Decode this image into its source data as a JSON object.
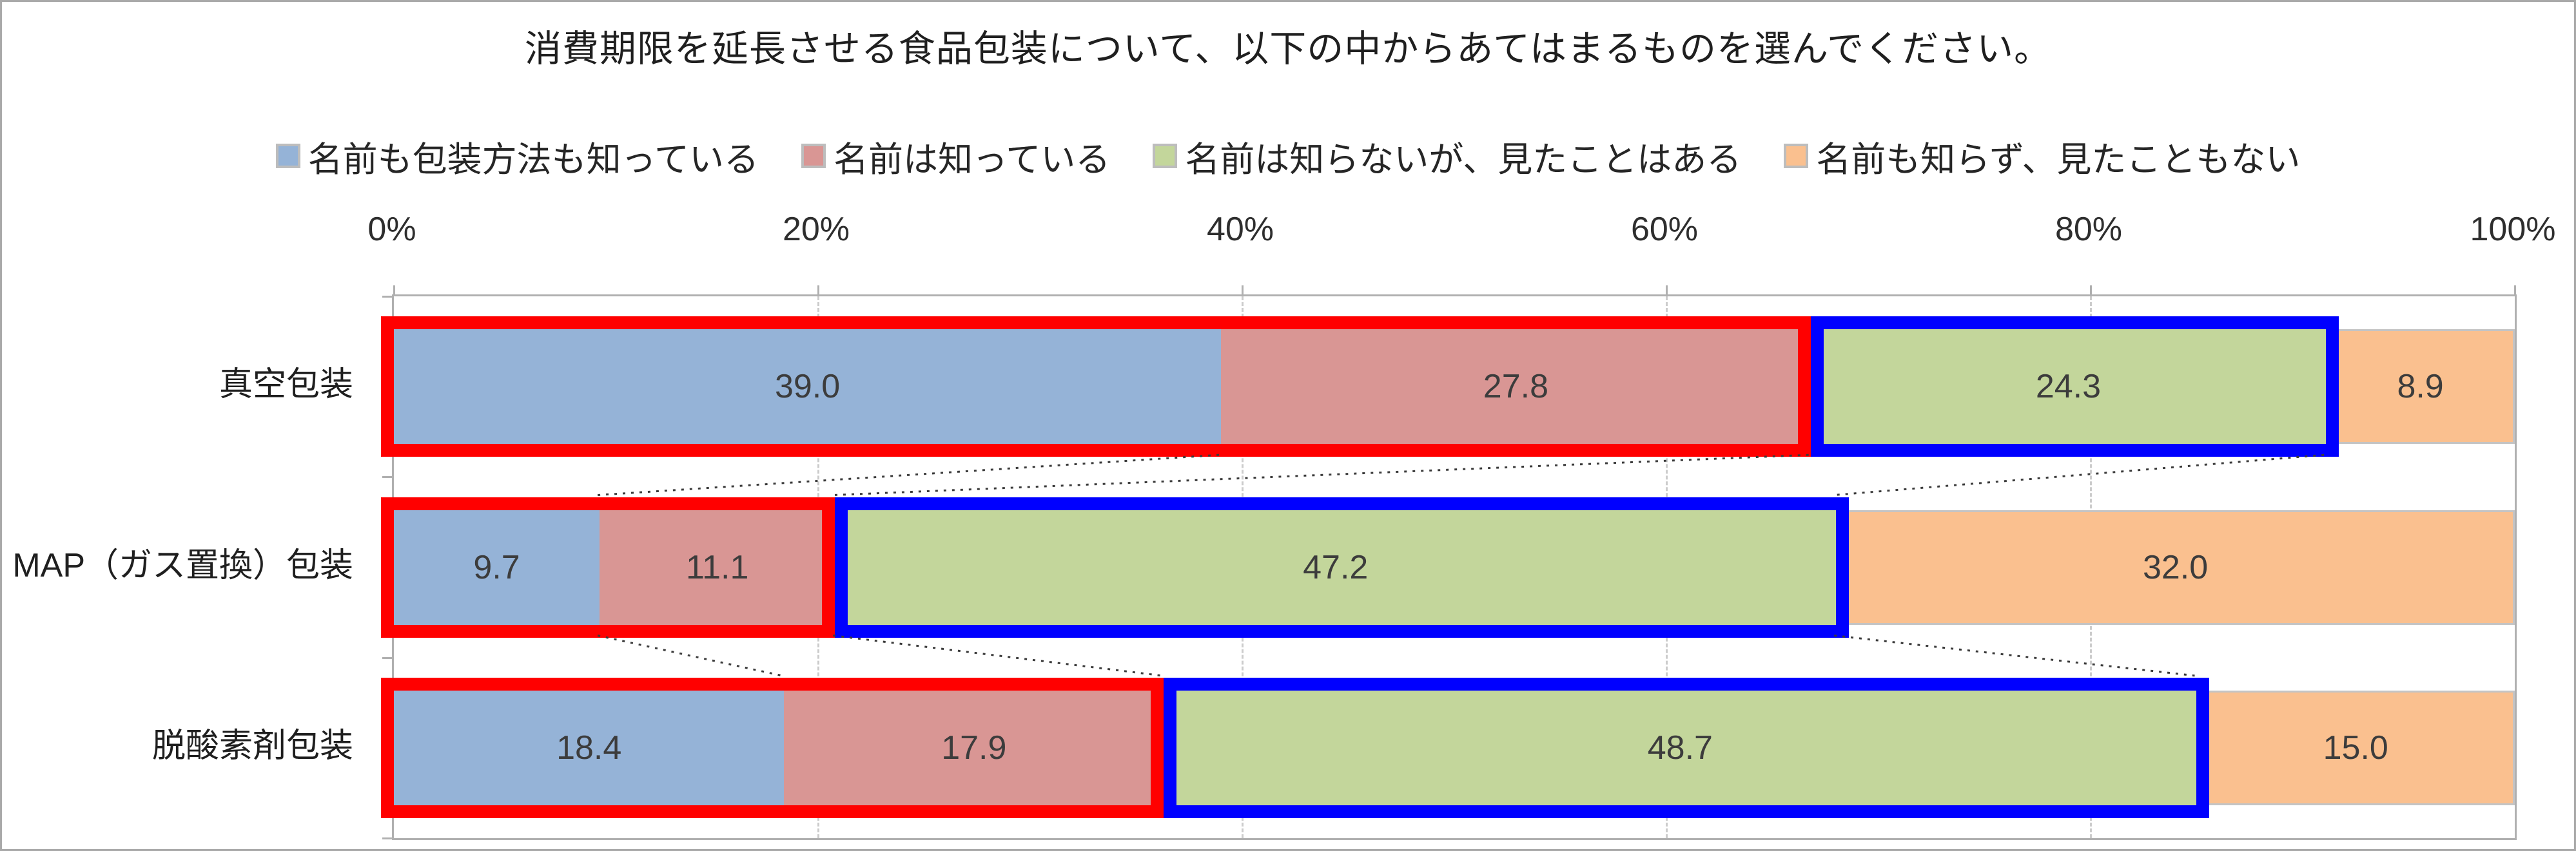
{
  "chart_data": {
    "type": "stacked-bar-horizontal",
    "title": "消費期限を延長させる食品包装について、以下の中からあてはまるものを選んでください。",
    "categories": [
      "真空包装",
      "MAP（ガス置換）包装",
      "脱酸素剤包装"
    ],
    "series": [
      {
        "name": "名前も包装方法も知っている",
        "color": "#95B3D7",
        "values": [
          39.0,
          9.7,
          18.4
        ]
      },
      {
        "name": "名前は知っている",
        "color": "#D99694",
        "values": [
          27.8,
          11.1,
          17.9
        ]
      },
      {
        "name": "名前は知らないが、見たことはある",
        "color": "#C3D69B",
        "values": [
          24.3,
          47.2,
          48.7
        ]
      },
      {
        "name": "名前も知らず、見たこともない",
        "color": "#FAC08F",
        "values": [
          8.9,
          32.0,
          15.0
        ]
      }
    ],
    "x_axis": {
      "min": 0,
      "max": 100,
      "tick_step": 20,
      "ticks": [
        "0%",
        "20%",
        "40%",
        "60%",
        "80%",
        "100%"
      ],
      "gridlines": "dashed-vertical"
    },
    "legend_position": "top",
    "annotations": {
      "red_box": {
        "color": "#FF0000",
        "covers_series_indexes": [
          0,
          1
        ],
        "applies_to_rows": [
          0,
          1,
          2
        ]
      },
      "blue_box": {
        "color": "#0000FF",
        "covers_series_indexes": [
          2
        ],
        "applies_to_rows": [
          0,
          1,
          2
        ]
      },
      "connector_lines": {
        "style": "dotted-black",
        "links": "segment boundaries between adjacent category rows"
      }
    }
  }
}
